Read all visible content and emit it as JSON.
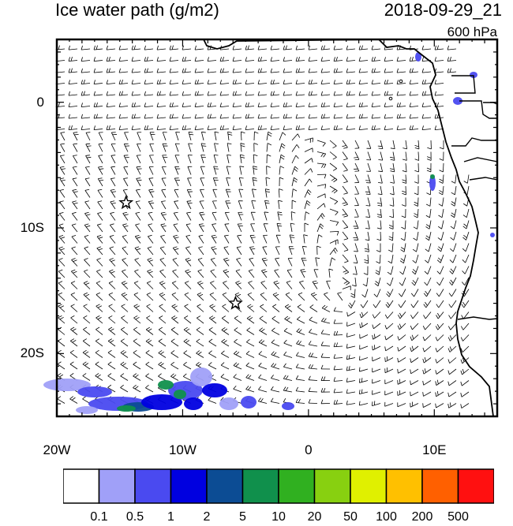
{
  "header": {
    "title": "Ice water path (g/m2)",
    "timestamp": "2018-09-29_21",
    "level": "600 hPa"
  },
  "axes": {
    "x_ticks": [
      {
        "label": "20W",
        "lon": -20
      },
      {
        "label": "10W",
        "lon": -10
      },
      {
        "label": "0",
        "lon": 0
      },
      {
        "label": "10E",
        "lon": 10
      }
    ],
    "y_ticks": [
      {
        "label": "0",
        "lat": 0
      },
      {
        "label": "10S",
        "lat": -10
      },
      {
        "label": "20S",
        "lat": -20
      }
    ],
    "lon_range": [
      -20,
      15
    ],
    "lat_range": [
      -25,
      5
    ]
  },
  "markers": [
    {
      "name": "star-marker",
      "lon": -14.5,
      "lat": -8
    },
    {
      "name": "star-marker",
      "lon": -5.8,
      "lat": -16
    }
  ],
  "colorbar": {
    "colors": [
      "#ffffff",
      "#a0a0f8",
      "#4a4af0",
      "#0000e0",
      "#0c4c94",
      "#10904c",
      "#30b020",
      "#88d010",
      "#e0f000",
      "#ffc000",
      "#ff6000",
      "#ff1010"
    ],
    "labels": [
      "0.1",
      "0.5",
      "1",
      "2",
      "5",
      "10",
      "20",
      "50",
      "100",
      "200",
      "500"
    ]
  },
  "wind_field": {
    "description_units": "barbs",
    "pattern": "anticyclonic"
  }
}
